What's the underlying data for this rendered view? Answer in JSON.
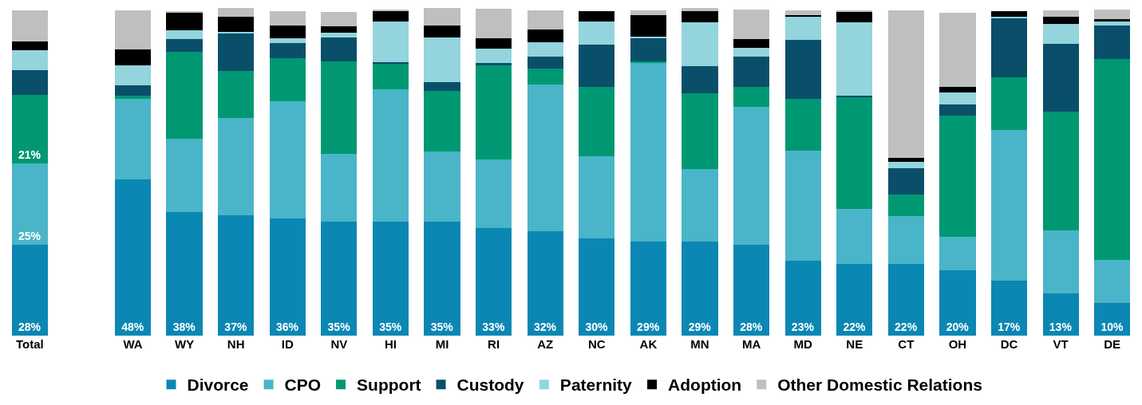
{
  "chart_data": {
    "type": "bar",
    "stacked": true,
    "legend": "bottom",
    "categories": [
      "Total",
      null,
      "WA",
      "WY",
      "NH",
      "ID",
      "NV",
      "HI",
      "MI",
      "RI",
      "AZ",
      "NC",
      "AK",
      "MN",
      "MA",
      "MD",
      "NE",
      "CT",
      "OH",
      "DC",
      "VT",
      "DE"
    ],
    "series": [
      {
        "name": "Divorce",
        "color": "#0b87b3",
        "values": [
          28,
          null,
          48,
          38,
          37,
          36,
          35,
          35,
          35,
          33,
          32,
          30,
          29,
          29,
          28,
          23,
          22,
          22,
          20,
          17,
          13,
          10
        ],
        "value_labels": [
          "28%",
          null,
          "48%",
          "38%",
          "37%",
          "36%",
          "35%",
          "35%",
          "35%",
          "33%",
          "32%",
          "30%",
          "29%",
          "29%",
          "28%",
          "23%",
          "22%",
          "22%",
          "20%",
          "17%",
          "13%",
          "10%"
        ]
      },
      {
        "name": "CPO",
        "color": "#4ab5c8",
        "values": [
          25,
          null,
          24.8,
          22.5,
          29.9,
          36,
          20.8,
          40.7,
          21.6,
          21.1,
          45.3,
          25.2,
          54.7,
          22.1,
          42.4,
          33.8,
          16.9,
          14.7,
          10.3,
          46.1,
          19.4,
          13.2
        ],
        "value_labels": [
          "25%",
          null,
          null,
          null,
          null,
          null,
          null,
          null,
          null,
          null,
          null,
          null,
          null,
          null,
          null,
          null,
          null,
          null,
          null,
          null,
          null,
          null
        ]
      },
      {
        "name": "Support",
        "color": "#009873",
        "values": [
          21,
          null,
          1,
          26.7,
          14.5,
          13.2,
          28.4,
          7.8,
          18.6,
          28.9,
          4.7,
          21.3,
          0.5,
          23.5,
          6.1,
          15.9,
          34.3,
          6.6,
          37.3,
          16.4,
          36.5,
          61.8
        ],
        "value_labels": [
          "21%",
          null,
          null,
          null,
          null,
          null,
          null,
          null,
          null,
          null,
          null,
          null,
          null,
          null,
          null,
          null,
          null,
          null,
          null,
          null,
          null,
          null
        ]
      },
      {
        "name": "Custody",
        "color": "#0a4f6a",
        "values": [
          7.6,
          null,
          3.2,
          3.9,
          11.5,
          4.7,
          7.4,
          0.5,
          2.7,
          0.7,
          3.7,
          13,
          7.1,
          8.1,
          9.3,
          18.1,
          0.5,
          8.1,
          3.4,
          18.1,
          20.8,
          10.3
        ]
      },
      {
        "name": "Paternity",
        "color": "#93d4dd",
        "values": [
          6.1,
          null,
          6.1,
          2.7,
          0.5,
          1.5,
          1.5,
          12.5,
          13.7,
          4.4,
          4.4,
          7.1,
          0.5,
          13.7,
          2.7,
          7.1,
          22.5,
          2,
          3.7,
          0.5,
          6.1,
          1.2
        ]
      },
      {
        "name": "Adoption",
        "color": "#000000",
        "values": [
          2.7,
          null,
          4.9,
          5.4,
          4.7,
          3.9,
          2,
          3.2,
          3.7,
          3.2,
          3.9,
          3.2,
          6.6,
          3.2,
          2.7,
          0.5,
          3.2,
          1.2,
          1.7,
          1.5,
          2.2,
          0.7
        ]
      },
      {
        "name": "Other Domestic Relations",
        "color": "#bfbfbf",
        "values": [
          9.6,
          null,
          12,
          0.5,
          2.5,
          4.4,
          4.4,
          0.5,
          5.4,
          9.1,
          5.9,
          0,
          1.5,
          1,
          9.1,
          1.5,
          0.5,
          45.3,
          22.8,
          0,
          2,
          2.9
        ]
      }
    ]
  }
}
